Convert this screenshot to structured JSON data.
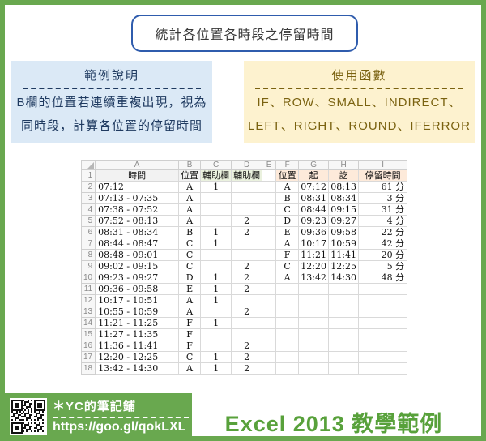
{
  "colors": {
    "green": "#69a84f",
    "caption_green": "#58a13b",
    "blue_border": "#2f5cad",
    "navy": "#1f3a60",
    "blue_bg": "#dbe9f6",
    "gold": "#7a6210",
    "yellow_bg": "#fdf2cf",
    "hdr_gray": "#f2f2f2",
    "hdr_green": "#eaf1de",
    "hdr_peach": "#fdeada"
  },
  "title_banner": {
    "text": "統計各位置各時段之停留時間"
  },
  "example_box": {
    "title": "範例說明",
    "line1": "B欄的位置若連續重複出現，視為",
    "line2": "同時段，計算各位置的停留時間"
  },
  "functions_box": {
    "title": "使用函數",
    "line1": "IF、ROW、SMALL、INDIRECT、",
    "line2": "LEFT、RIGHT、ROUND、IFERROR"
  },
  "spreadsheet": {
    "column_letters": [
      "A",
      "B",
      "C",
      "D",
      "E",
      "F",
      "G",
      "H",
      "I"
    ],
    "header_row": [
      "時間",
      "位置",
      "輔助欄",
      "輔助欄",
      "",
      "位置",
      "起",
      "訖",
      "停留時間"
    ],
    "rows": [
      [
        "07:12",
        "A",
        "1",
        "",
        "",
        "A",
        "07:12",
        "08:13",
        "61 分"
      ],
      [
        "07:13 - 07:35",
        "A",
        "",
        "",
        "",
        "B",
        "08:31",
        "08:34",
        "3 分"
      ],
      [
        "07:38 - 07:52",
        "A",
        "",
        "",
        "",
        "C",
        "08:44",
        "09:15",
        "31 分"
      ],
      [
        "07:52 - 08:13",
        "A",
        "",
        "2",
        "",
        "D",
        "09:23",
        "09:27",
        "4 分"
      ],
      [
        "08:31 - 08:34",
        "B",
        "1",
        "2",
        "",
        "E",
        "09:36",
        "09:58",
        "22 分"
      ],
      [
        "08:44 - 08:47",
        "C",
        "1",
        "",
        "",
        "A",
        "10:17",
        "10:59",
        "42 分"
      ],
      [
        "08:48 - 09:01",
        "C",
        "",
        "",
        "",
        "F",
        "11:21",
        "11:41",
        "20 分"
      ],
      [
        "09:02 - 09:15",
        "C",
        "",
        "2",
        "",
        "C",
        "12:20",
        "12:25",
        "5 分"
      ],
      [
        "09:23 - 09:27",
        "D",
        "1",
        "2",
        "",
        "A",
        "13:42",
        "14:30",
        "48 分"
      ],
      [
        "09:36 - 09:58",
        "E",
        "1",
        "2",
        "",
        "",
        "",
        "",
        ""
      ],
      [
        "10:17 - 10:51",
        "A",
        "1",
        "",
        "",
        "",
        "",
        "",
        ""
      ],
      [
        "10:55 - 10:59",
        "A",
        "",
        "2",
        "",
        "",
        "",
        "",
        ""
      ],
      [
        "11:21 - 11:25",
        "F",
        "1",
        "",
        "",
        "",
        "",
        "",
        ""
      ],
      [
        "11:27 - 11:35",
        "F",
        "",
        "",
        "",
        "",
        "",
        "",
        ""
      ],
      [
        "11:36 - 11:41",
        "F",
        "",
        "2",
        "",
        "",
        "",
        "",
        ""
      ],
      [
        "12:20 - 12:25",
        "C",
        "1",
        "2",
        "",
        "",
        "",
        "",
        ""
      ],
      [
        "13:42 - 14:30",
        "A",
        "1",
        "2",
        "",
        "",
        "",
        "",
        ""
      ]
    ]
  },
  "footer": {
    "badge_title": "＊YC的筆記鋪",
    "badge_url": "https://goo.gl/qokLXL",
    "caption": "Excel 2013 教學範例"
  }
}
